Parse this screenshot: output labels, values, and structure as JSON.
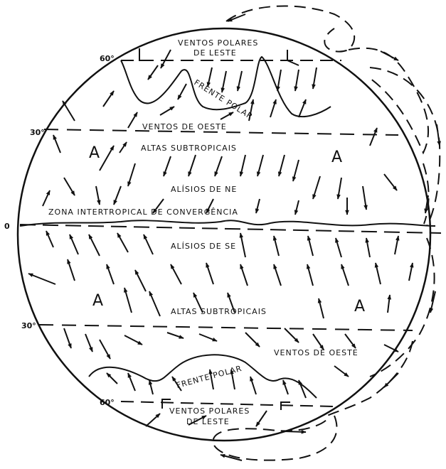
{
  "labels": {
    "polar_east_north_line1": "VENTOS POLARES",
    "polar_east_north_line2": "DE LESTE",
    "polar_front_north": "FRENTE POLAR",
    "westerlies_north": "VENTOS DE OESTE",
    "subtropical_highs_north": "ALTAS SUBTROPICAIS",
    "trades_ne": "ALÍSIOS DE NE",
    "itcz": "ZONA INTERTROPICAL DE CONVERGÊNCIA",
    "trades_se": "ALÍSIOS DE SE",
    "subtropical_highs_south": "ALTAS SUBTROPICAIS",
    "westerlies_south": "VENTOS DE OESTE",
    "polar_front_south": "FRENTE POLAR",
    "polar_east_south_line1": "VENTOS POLARES",
    "polar_east_south_line2": "DE LESTE"
  },
  "high_pressure": {
    "nw": "A",
    "ne": "A",
    "sw": "A",
    "se": "A"
  },
  "latitudes": {
    "n60": "60°",
    "n30": "30°",
    "eq": "0",
    "s30": "30°",
    "s60": "60°"
  }
}
